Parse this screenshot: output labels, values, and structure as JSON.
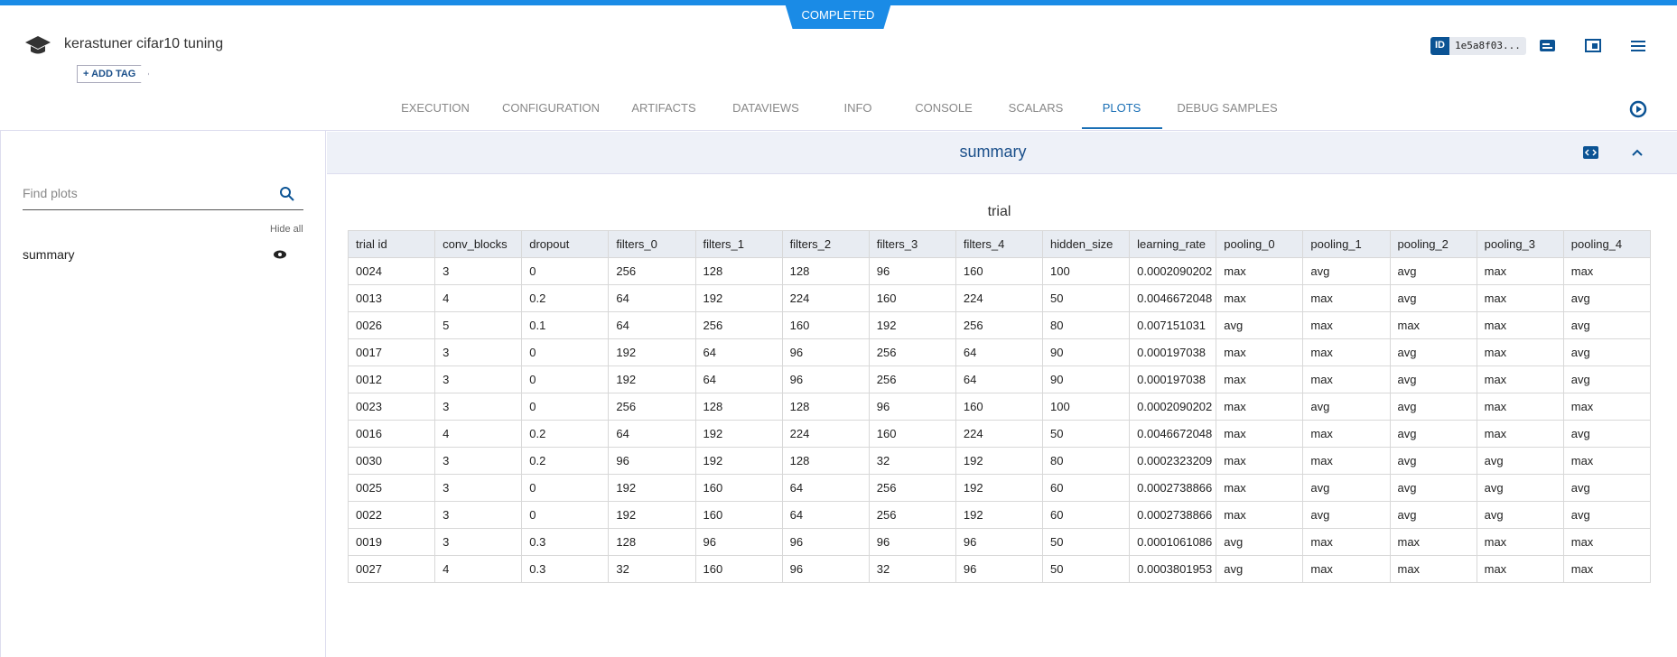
{
  "header": {
    "status": "COMPLETED",
    "title": "kerastuner cifar10 tuning",
    "add_tag": "+ ADD TAG",
    "id_label": "ID",
    "id_value": "1e5a8f03...",
    "tabs": [
      "EXECUTION",
      "CONFIGURATION",
      "ARTIFACTS",
      "DATAVIEWS",
      "INFO",
      "CONSOLE",
      "SCALARS",
      "PLOTS",
      "DEBUG SAMPLES"
    ],
    "active_tab": "PLOTS"
  },
  "sidebar": {
    "search_placeholder": "Find plots",
    "hide_all": "Hide all",
    "plots": [
      "summary"
    ]
  },
  "panel": {
    "title": "summary",
    "table": {
      "title": "trial",
      "columns": [
        "trial id",
        "conv_blocks",
        "dropout",
        "filters_0",
        "filters_1",
        "filters_2",
        "filters_3",
        "filters_4",
        "hidden_size",
        "learning_rate",
        "pooling_0",
        "pooling_1",
        "pooling_2",
        "pooling_3",
        "pooling_4"
      ],
      "rows": [
        [
          "0024",
          "3",
          "0",
          "256",
          "128",
          "128",
          "96",
          "160",
          "100",
          "0.0002090202",
          "max",
          "avg",
          "avg",
          "max",
          "max"
        ],
        [
          "0013",
          "4",
          "0.2",
          "64",
          "192",
          "224",
          "160",
          "224",
          "50",
          "0.0046672048",
          "max",
          "max",
          "avg",
          "max",
          "avg"
        ],
        [
          "0026",
          "5",
          "0.1",
          "64",
          "256",
          "160",
          "192",
          "256",
          "80",
          "0.007151031",
          "avg",
          "max",
          "max",
          "max",
          "avg"
        ],
        [
          "0017",
          "3",
          "0",
          "192",
          "64",
          "96",
          "256",
          "64",
          "90",
          "0.000197038",
          "max",
          "max",
          "avg",
          "max",
          "avg"
        ],
        [
          "0012",
          "3",
          "0",
          "192",
          "64",
          "96",
          "256",
          "64",
          "90",
          "0.000197038",
          "max",
          "max",
          "avg",
          "max",
          "avg"
        ],
        [
          "0023",
          "3",
          "0",
          "256",
          "128",
          "128",
          "96",
          "160",
          "100",
          "0.0002090202",
          "max",
          "avg",
          "avg",
          "max",
          "max"
        ],
        [
          "0016",
          "4",
          "0.2",
          "64",
          "192",
          "224",
          "160",
          "224",
          "50",
          "0.0046672048",
          "max",
          "max",
          "avg",
          "max",
          "avg"
        ],
        [
          "0030",
          "3",
          "0.2",
          "96",
          "192",
          "128",
          "32",
          "192",
          "80",
          "0.0002323209",
          "max",
          "max",
          "avg",
          "avg",
          "max"
        ],
        [
          "0025",
          "3",
          "0",
          "192",
          "160",
          "64",
          "256",
          "192",
          "60",
          "0.0002738866",
          "max",
          "avg",
          "avg",
          "avg",
          "avg"
        ],
        [
          "0022",
          "3",
          "0",
          "192",
          "160",
          "64",
          "256",
          "192",
          "60",
          "0.0002738866",
          "max",
          "avg",
          "avg",
          "avg",
          "avg"
        ],
        [
          "0019",
          "3",
          "0.3",
          "128",
          "96",
          "96",
          "96",
          "96",
          "50",
          "0.0001061086",
          "avg",
          "max",
          "max",
          "max",
          "max"
        ],
        [
          "0027",
          "4",
          "0.3",
          "32",
          "160",
          "96",
          "32",
          "96",
          "50",
          "0.0003801953",
          "avg",
          "max",
          "max",
          "max",
          "max"
        ]
      ]
    }
  }
}
